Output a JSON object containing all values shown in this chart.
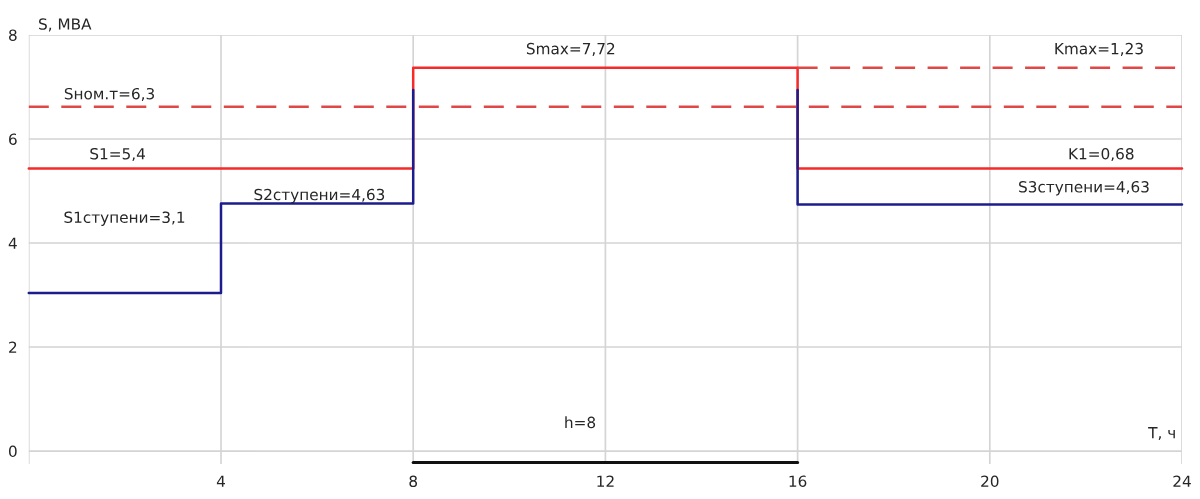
{
  "chart_data": {
    "type": "line",
    "xlabel": "T, ч",
    "ylabel": "S, МВА",
    "xlim": [
      0,
      24
    ],
    "ylim": [
      -0.25,
      8
    ],
    "xticks": [
      {
        "value": 0,
        "label": null
      },
      4,
      8,
      12,
      16,
      20,
      24
    ],
    "yticks": [
      0,
      2,
      4,
      6,
      8
    ],
    "grid": true,
    "marker": "none",
    "series": [
      {
        "color": "#f52a2a",
        "line_style": "solid",
        "x": [
          0,
          8,
          8,
          16,
          16,
          24
        ],
        "values": [
          5.43,
          5.43,
          7.37,
          7.37,
          5.43,
          5.43
        ]
      },
      {
        "color": "#e04848",
        "line_style": "dashed",
        "x": [
          0,
          24
        ],
        "values": [
          6.62,
          6.62
        ]
      },
      {
        "color": "#e04848",
        "line_style": "dashed",
        "x": [
          16,
          24
        ],
        "values": [
          7.37,
          7.37
        ]
      },
      {
        "color": "#1c1c8c",
        "line_style": "solid",
        "x": [
          0,
          4,
          4,
          8,
          8
        ],
        "values": [
          3.04,
          3.04,
          4.76,
          4.76,
          6.94
        ]
      },
      {
        "color": "#1c1c8c",
        "line_style": "solid",
        "x": [
          16,
          16,
          24
        ],
        "values": [
          6.94,
          4.74,
          4.74
        ]
      },
      {
        "color": "#111111",
        "line_style": "solid",
        "x": [
          8,
          16
        ],
        "values": [
          -0.22,
          -0.22
        ]
      }
    ],
    "annotations": [
      "Sном.т=6,3",
      "S1=5,4",
      "S1ступени=3,1",
      "S2ступени=4,63",
      "Smax=7,72",
      "Kmax=1,23",
      "K1=0,68",
      "S3ступени=4,63",
      "h=8"
    ]
  }
}
